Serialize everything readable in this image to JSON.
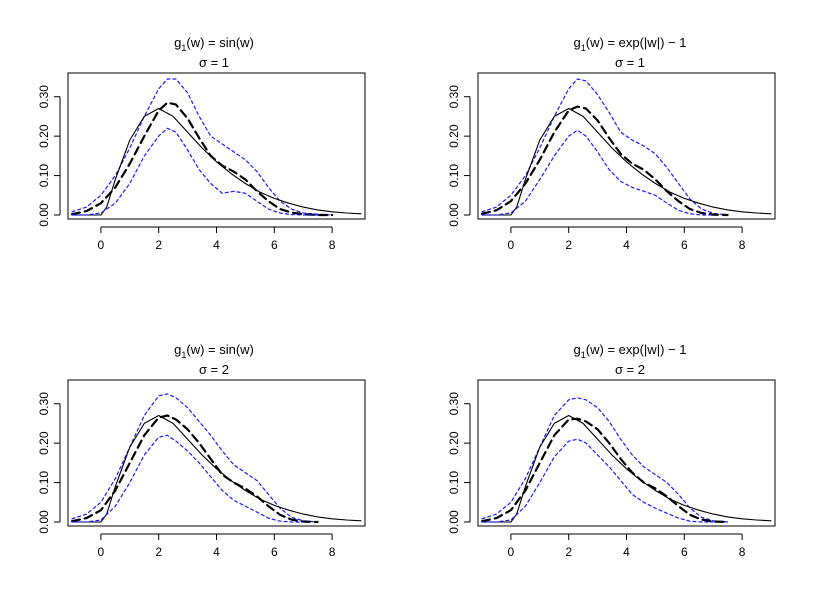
{
  "chart_data": [
    {
      "type": "line",
      "title_func": "g",
      "title_sub": "1",
      "title_expr": "(w) = sin(w)",
      "title_sigma": "σ = 1",
      "xlim": [
        -1,
        9
      ],
      "ylim": [
        0,
        0.35
      ],
      "xticks": [
        0,
        2,
        4,
        6,
        8
      ],
      "yticks": [
        0.0,
        0.1,
        0.2,
        0.3
      ],
      "ytick_labels": [
        "0.00",
        "0.10",
        "0.20",
        "0.30"
      ],
      "series": [
        {
          "name": "upper-band",
          "style": "dotted-blue",
          "x": [
            -1,
            -0.5,
            0,
            0.5,
            1,
            1.5,
            2,
            2.3,
            2.6,
            3,
            3.4,
            3.8,
            4.2,
            4.6,
            5,
            5.4,
            5.8,
            6.2,
            6.6,
            7,
            7.5,
            8
          ],
          "y": [
            0.008,
            0.02,
            0.05,
            0.1,
            0.17,
            0.25,
            0.32,
            0.345,
            0.345,
            0.31,
            0.25,
            0.2,
            0.18,
            0.16,
            0.14,
            0.11,
            0.07,
            0.035,
            0.015,
            0.005,
            0.002,
            0.0
          ]
        },
        {
          "name": "estimate",
          "style": "dashed-black",
          "x": [
            -1,
            -0.5,
            0,
            0.5,
            1,
            1.5,
            2,
            2.3,
            2.6,
            3,
            3.4,
            3.8,
            4.2,
            4.6,
            5,
            5.4,
            5.8,
            6.2,
            6.6,
            7,
            7.5,
            8
          ],
          "y": [
            0.002,
            0.01,
            0.03,
            0.07,
            0.13,
            0.2,
            0.265,
            0.285,
            0.28,
            0.245,
            0.195,
            0.15,
            0.125,
            0.11,
            0.09,
            0.06,
            0.035,
            0.015,
            0.006,
            0.002,
            0.0,
            0.0
          ]
        },
        {
          "name": "true-density",
          "style": "solid-black",
          "x": [
            -1,
            -0.5,
            0,
            0.2,
            0.5,
            1,
            1.5,
            2,
            2.5,
            3,
            3.5,
            4,
            4.5,
            5,
            5.5,
            6,
            6.5,
            7,
            7.5,
            8,
            8.5,
            9
          ],
          "y": [
            0,
            0,
            0,
            0.02,
            0.09,
            0.19,
            0.25,
            0.27,
            0.25,
            0.21,
            0.17,
            0.135,
            0.105,
            0.08,
            0.058,
            0.042,
            0.03,
            0.02,
            0.013,
            0.008,
            0.005,
            0.003
          ]
        },
        {
          "name": "lower-band",
          "style": "dotted-blue",
          "x": [
            -1,
            -0.5,
            0,
            0.5,
            1,
            1.5,
            2,
            2.3,
            2.6,
            3,
            3.4,
            3.8,
            4.2,
            4.6,
            5,
            5.4,
            5.8,
            6.2,
            6.6,
            7,
            7.5
          ],
          "y": [
            0,
            0,
            0.005,
            0.03,
            0.08,
            0.15,
            0.2,
            0.22,
            0.21,
            0.165,
            0.115,
            0.08,
            0.055,
            0.06,
            0.055,
            0.035,
            0.015,
            0.005,
            0.001,
            0.0,
            0.0
          ]
        }
      ]
    },
    {
      "type": "line",
      "title_func": "g",
      "title_sub": "1",
      "title_expr": "(w) = exp(|w|) − 1",
      "title_sigma": "σ = 1",
      "xlim": [
        -1,
        9
      ],
      "ylim": [
        0,
        0.35
      ],
      "xticks": [
        0,
        2,
        4,
        6,
        8
      ],
      "yticks": [
        0.0,
        0.1,
        0.2,
        0.3
      ],
      "ytick_labels": [
        "0.00",
        "0.10",
        "0.20",
        "0.30"
      ],
      "series": [
        {
          "name": "upper-band",
          "style": "dotted-blue",
          "x": [
            -1,
            -0.5,
            0,
            0.5,
            1,
            1.5,
            2,
            2.3,
            2.6,
            3,
            3.4,
            3.8,
            4.2,
            4.6,
            5,
            5.4,
            5.8,
            6.2,
            6.6,
            7,
            7.5
          ],
          "y": [
            0.008,
            0.02,
            0.05,
            0.1,
            0.17,
            0.25,
            0.32,
            0.345,
            0.34,
            0.305,
            0.26,
            0.21,
            0.19,
            0.175,
            0.155,
            0.12,
            0.08,
            0.04,
            0.015,
            0.004,
            0.0
          ]
        },
        {
          "name": "estimate",
          "style": "dashed-black",
          "x": [
            -1,
            -0.5,
            0,
            0.5,
            1,
            1.5,
            2,
            2.3,
            2.6,
            3,
            3.4,
            3.8,
            4.2,
            4.6,
            5,
            5.4,
            5.8,
            6.2,
            6.6,
            7,
            7.5
          ],
          "y": [
            0.003,
            0.012,
            0.035,
            0.08,
            0.14,
            0.21,
            0.265,
            0.275,
            0.27,
            0.24,
            0.195,
            0.155,
            0.13,
            0.115,
            0.09,
            0.06,
            0.035,
            0.015,
            0.005,
            0.001,
            0.0
          ]
        },
        {
          "name": "true-density",
          "style": "solid-black",
          "x": [
            -1,
            -0.5,
            0,
            0.2,
            0.5,
            1,
            1.5,
            2,
            2.5,
            3,
            3.5,
            4,
            4.5,
            5,
            5.5,
            6,
            6.5,
            7,
            7.5,
            8,
            8.5,
            9
          ],
          "y": [
            0,
            0,
            0,
            0.02,
            0.09,
            0.19,
            0.25,
            0.27,
            0.25,
            0.21,
            0.17,
            0.135,
            0.105,
            0.08,
            0.058,
            0.042,
            0.03,
            0.02,
            0.013,
            0.008,
            0.005,
            0.003
          ]
        },
        {
          "name": "lower-band",
          "style": "dotted-blue",
          "x": [
            -1,
            -0.5,
            0,
            0.5,
            1,
            1.5,
            2,
            2.3,
            2.6,
            3,
            3.4,
            3.8,
            4.2,
            4.6,
            5,
            5.4,
            5.8,
            6.2,
            6.6,
            7
          ],
          "y": [
            0,
            0,
            0.005,
            0.035,
            0.09,
            0.15,
            0.2,
            0.215,
            0.2,
            0.16,
            0.115,
            0.085,
            0.07,
            0.06,
            0.05,
            0.03,
            0.012,
            0.003,
            0.0,
            0.0
          ]
        }
      ]
    },
    {
      "type": "line",
      "title_func": "g",
      "title_sub": "1",
      "title_expr": "(w) = sin(w)",
      "title_sigma": "σ = 2",
      "xlim": [
        -1,
        9
      ],
      "ylim": [
        0,
        0.35
      ],
      "xticks": [
        0,
        2,
        4,
        6,
        8
      ],
      "yticks": [
        0.0,
        0.1,
        0.2,
        0.3
      ],
      "ytick_labels": [
        "0.00",
        "0.10",
        "0.20",
        "0.30"
      ],
      "series": [
        {
          "name": "upper-band",
          "style": "dotted-blue",
          "x": [
            -1,
            -0.5,
            0,
            0.5,
            1,
            1.5,
            2,
            2.3,
            2.6,
            3,
            3.4,
            3.8,
            4.2,
            4.6,
            5,
            5.4,
            5.8,
            6.2,
            6.6,
            7,
            7.5
          ],
          "y": [
            0.008,
            0.02,
            0.05,
            0.11,
            0.19,
            0.27,
            0.32,
            0.325,
            0.315,
            0.29,
            0.255,
            0.22,
            0.18,
            0.145,
            0.125,
            0.105,
            0.07,
            0.035,
            0.012,
            0.003,
            0.0
          ]
        },
        {
          "name": "estimate",
          "style": "dashed-black",
          "x": [
            -1,
            -0.5,
            0,
            0.5,
            1,
            1.5,
            2,
            2.3,
            2.6,
            3,
            3.4,
            3.8,
            4.2,
            4.6,
            5,
            5.4,
            5.8,
            6.2,
            6.6,
            7,
            7.5
          ],
          "y": [
            0.002,
            0.01,
            0.03,
            0.08,
            0.15,
            0.22,
            0.265,
            0.27,
            0.26,
            0.235,
            0.2,
            0.16,
            0.12,
            0.1,
            0.085,
            0.065,
            0.04,
            0.018,
            0.006,
            0.001,
            0.0
          ]
        },
        {
          "name": "true-density",
          "style": "solid-black",
          "x": [
            -1,
            -0.5,
            0,
            0.2,
            0.5,
            1,
            1.5,
            2,
            2.5,
            3,
            3.5,
            4,
            4.5,
            5,
            5.5,
            6,
            6.5,
            7,
            7.5,
            8,
            8.5,
            9
          ],
          "y": [
            0,
            0,
            0,
            0.02,
            0.09,
            0.19,
            0.25,
            0.27,
            0.25,
            0.21,
            0.17,
            0.135,
            0.105,
            0.08,
            0.058,
            0.042,
            0.03,
            0.02,
            0.013,
            0.008,
            0.005,
            0.003
          ]
        },
        {
          "name": "lower-band",
          "style": "dotted-blue",
          "x": [
            -1,
            -0.5,
            0,
            0.5,
            1,
            1.5,
            2,
            2.3,
            2.6,
            3,
            3.4,
            3.8,
            4.2,
            4.6,
            5,
            5.4,
            5.8,
            6.2,
            6.6,
            7
          ],
          "y": [
            0,
            0,
            0.005,
            0.04,
            0.1,
            0.17,
            0.215,
            0.22,
            0.205,
            0.18,
            0.15,
            0.115,
            0.08,
            0.055,
            0.04,
            0.025,
            0.01,
            0.002,
            0.0,
            0.0
          ]
        }
      ]
    },
    {
      "type": "line",
      "title_func": "g",
      "title_sub": "1",
      "title_expr": "(w) = exp(|w|) − 1",
      "title_sigma": "σ = 2",
      "xlim": [
        -1,
        9
      ],
      "ylim": [
        0,
        0.35
      ],
      "xticks": [
        0,
        2,
        4,
        6,
        8
      ],
      "yticks": [
        0.0,
        0.1,
        0.2,
        0.3
      ],
      "ytick_labels": [
        "0.00",
        "0.10",
        "0.20",
        "0.30"
      ],
      "series": [
        {
          "name": "upper-band",
          "style": "dotted-blue",
          "x": [
            -1,
            -0.5,
            0,
            0.5,
            1,
            1.5,
            2,
            2.3,
            2.6,
            3,
            3.4,
            3.8,
            4.2,
            4.6,
            5,
            5.4,
            5.8,
            6.2,
            6.6,
            7,
            7.5
          ],
          "y": [
            0.008,
            0.02,
            0.05,
            0.11,
            0.19,
            0.27,
            0.31,
            0.315,
            0.31,
            0.29,
            0.255,
            0.21,
            0.17,
            0.14,
            0.12,
            0.1,
            0.07,
            0.035,
            0.012,
            0.003,
            0.0
          ]
        },
        {
          "name": "estimate",
          "style": "dashed-black",
          "x": [
            -1,
            -0.5,
            0,
            0.5,
            1,
            1.5,
            2,
            2.3,
            2.6,
            3,
            3.4,
            3.8,
            4.2,
            4.6,
            5,
            5.4,
            5.8,
            6.2,
            6.6,
            7,
            7.5
          ],
          "y": [
            0.002,
            0.01,
            0.03,
            0.08,
            0.15,
            0.22,
            0.26,
            0.262,
            0.255,
            0.235,
            0.2,
            0.16,
            0.125,
            0.1,
            0.085,
            0.065,
            0.04,
            0.018,
            0.006,
            0.001,
            0.0
          ]
        },
        {
          "name": "true-density",
          "style": "solid-black",
          "x": [
            -1,
            -0.5,
            0,
            0.2,
            0.5,
            1,
            1.5,
            2,
            2.5,
            3,
            3.5,
            4,
            4.5,
            5,
            5.5,
            6,
            6.5,
            7,
            7.5,
            8,
            8.5,
            9
          ],
          "y": [
            0,
            0,
            0,
            0.02,
            0.09,
            0.19,
            0.25,
            0.27,
            0.25,
            0.21,
            0.17,
            0.135,
            0.105,
            0.08,
            0.058,
            0.042,
            0.03,
            0.02,
            0.013,
            0.008,
            0.005,
            0.003
          ]
        },
        {
          "name": "lower-band",
          "style": "dotted-blue",
          "x": [
            -1,
            -0.5,
            0,
            0.5,
            1,
            1.5,
            2,
            2.3,
            2.6,
            3,
            3.4,
            3.8,
            4.2,
            4.6,
            5,
            5.4,
            5.8,
            6.2,
            6.6,
            7
          ],
          "y": [
            0,
            0,
            0.005,
            0.04,
            0.1,
            0.165,
            0.205,
            0.21,
            0.2,
            0.17,
            0.14,
            0.105,
            0.07,
            0.05,
            0.035,
            0.022,
            0.01,
            0.002,
            0.0,
            0.0
          ]
        }
      ]
    }
  ],
  "colors": {
    "band": "#1a1aff",
    "estimate": "#000000",
    "truth": "#000000",
    "frame": "#000000"
  }
}
